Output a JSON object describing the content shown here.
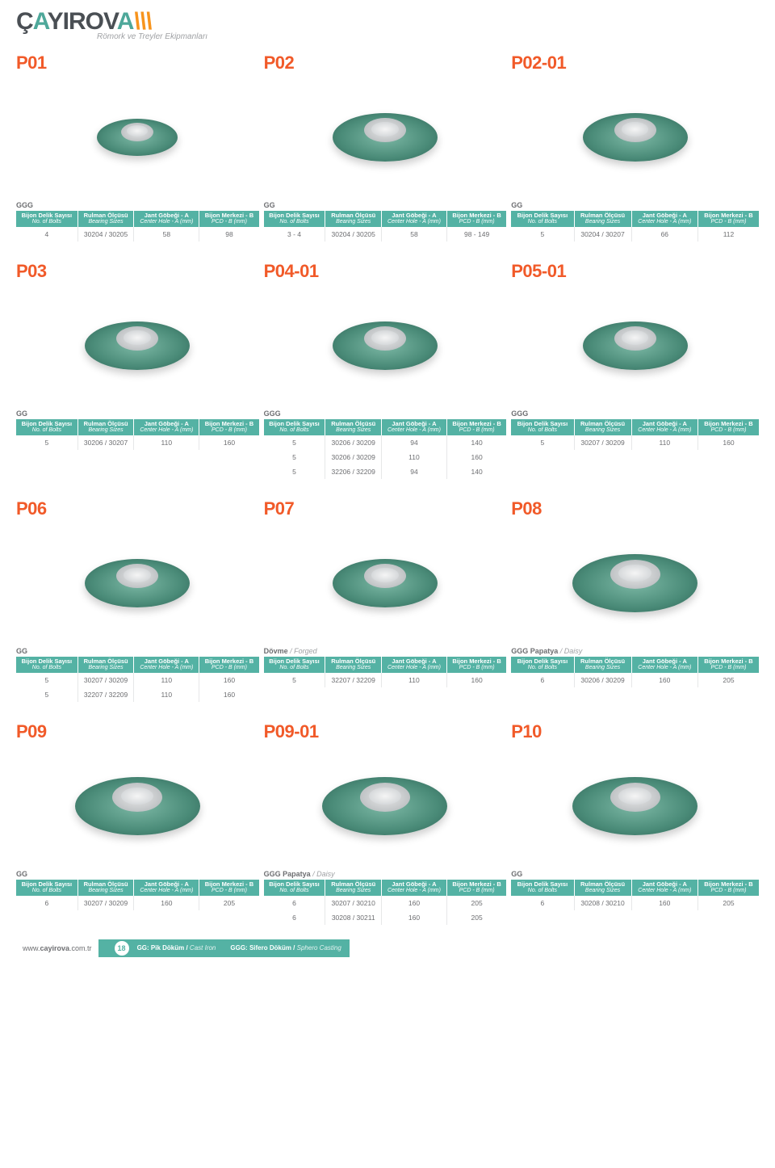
{
  "brand": {
    "name": "ÇAYIROVA",
    "tagline": "Römork ve Treyler Ekipmanları"
  },
  "header_colors": {
    "brand_dark": "#4a4f54",
    "accent": "#4ea89a",
    "orange": "#f7941d"
  },
  "columns": {
    "c1": {
      "h": "Bijon Delik Sayısı",
      "s": "No. of Bolts"
    },
    "c2": {
      "h": "Rulman Ölçüsü",
      "s": "Bearing Sizes"
    },
    "c3": {
      "h": "Jant Göbeği - A",
      "s": "Center Hole - A (mm)"
    },
    "c4": {
      "h": "Bijon Merkezi - B",
      "s": "PCD - B (mm)"
    }
  },
  "products": {
    "P01": {
      "code": "P01",
      "mat": "GGG",
      "size": "sm",
      "rows": [
        [
          "4",
          "30204 / 30205",
          "58",
          "98"
        ]
      ]
    },
    "P02": {
      "code": "P02",
      "mat": "GG",
      "size": "md",
      "rows": [
        [
          "3 - 4",
          "30204 / 30205",
          "58",
          "98 - 149"
        ]
      ]
    },
    "P02_01": {
      "code": "P02-01",
      "mat": "GG",
      "size": "md",
      "rows": [
        [
          "5",
          "30204 / 30207",
          "66",
          "112"
        ]
      ]
    },
    "P03": {
      "code": "P03",
      "mat": "GG",
      "size": "md",
      "rows": [
        [
          "5",
          "30206 / 30207",
          "110",
          "160"
        ]
      ]
    },
    "P04_01": {
      "code": "P04-01",
      "mat": "GGG",
      "size": "md",
      "rows": [
        [
          "5",
          "30206 / 30209",
          "94",
          "140"
        ],
        [
          "5",
          "30206 / 30209",
          "110",
          "160"
        ],
        [
          "5",
          "32206 / 32209",
          "94",
          "140"
        ]
      ]
    },
    "P05_01": {
      "code": "P05-01",
      "mat": "GGG",
      "size": "md",
      "rows": [
        [
          "5",
          "30207 / 30209",
          "110",
          "160"
        ]
      ]
    },
    "P06": {
      "code": "P06",
      "mat": "GG",
      "size": "md",
      "rows": [
        [
          "5",
          "30207 / 30209",
          "110",
          "160"
        ],
        [
          "5",
          "32207 / 32209",
          "110",
          "160"
        ]
      ]
    },
    "P07": {
      "code": "P07",
      "mat": "Dövme",
      "mat_it": "Forged",
      "size": "md",
      "rows": [
        [
          "5",
          "32207 / 32209",
          "110",
          "160"
        ]
      ]
    },
    "P08": {
      "code": "P08",
      "mat": "GGG Papatya",
      "mat_it": "Daisy",
      "size": "lg",
      "rows": [
        [
          "6",
          "30206 / 30209",
          "160",
          "205"
        ]
      ]
    },
    "P09": {
      "code": "P09",
      "mat": "GG",
      "size": "lg",
      "rows": [
        [
          "6",
          "30207 / 30209",
          "160",
          "205"
        ]
      ]
    },
    "P09_01": {
      "code": "P09-01",
      "mat": "GGG Papatya",
      "mat_it": "Daisy",
      "size": "lg",
      "rows": [
        [
          "6",
          "30207 / 30210",
          "160",
          "205"
        ],
        [
          "6",
          "30208 / 30211",
          "160",
          "205"
        ]
      ]
    },
    "P10": {
      "code": "P10",
      "mat": "GG",
      "size": "lg",
      "rows": [
        [
          "6",
          "30208 / 30210",
          "160",
          "205"
        ]
      ]
    }
  },
  "layout_rows": [
    [
      "P01",
      "P02",
      "P02_01"
    ],
    [
      "P03",
      "P04_01",
      "P05_01"
    ],
    [
      "P06",
      "P07",
      "P08"
    ],
    [
      "P09",
      "P09_01",
      "P10"
    ]
  ],
  "theme": {
    "header_bg": "#54b2a4",
    "text": "#6d6e71",
    "code": "#f15a29"
  },
  "footer": {
    "url_pre": "www.",
    "url_bold": "cayirova",
    "url_post": ".com.tr",
    "pageno": "18",
    "leg1_a": "GG: Pik Döküm /",
    "leg1_b": "Cast Iron",
    "leg2_a": "GGG: Sifero Döküm /",
    "leg2_b": "Sphero Casting"
  }
}
